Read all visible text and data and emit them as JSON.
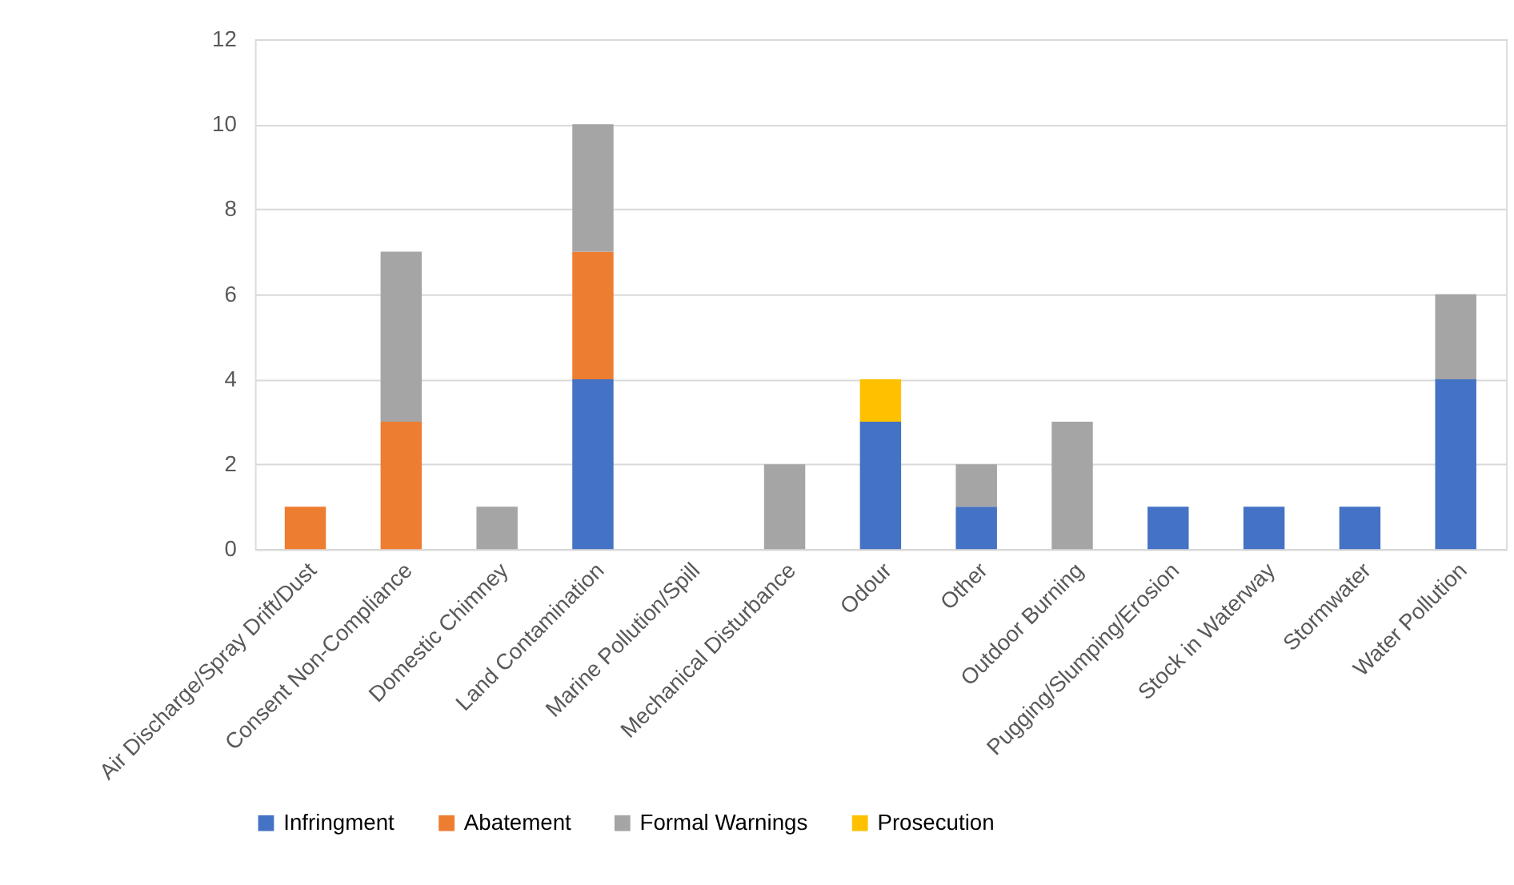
{
  "chart_data": {
    "type": "bar",
    "stacked": true,
    "categories": [
      "Air Discharge/Spray Drift/Dust",
      "Consent Non-Compliance",
      "Domestic Chimney",
      "Land Contamination",
      "Marine Pollution/Spill",
      "Mechanical Disturbance",
      "Odour",
      "Other",
      "Outdoor Burning",
      "Pugging/Slumping/Erosion",
      "Stock in Waterway",
      "Stormwater",
      "Water Pollution"
    ],
    "series": [
      {
        "name": "Infringment",
        "color": "#4472c4",
        "values": [
          null,
          null,
          null,
          4,
          null,
          null,
          3,
          1,
          null,
          1,
          1,
          1,
          4
        ]
      },
      {
        "name": "Abatement",
        "color": "#ed7d31",
        "values": [
          1,
          3,
          null,
          3,
          null,
          null,
          null,
          null,
          null,
          null,
          null,
          null,
          null
        ]
      },
      {
        "name": "Formal Warnings",
        "color": "#a5a5a5",
        "values": [
          null,
          4,
          1,
          3,
          null,
          2,
          null,
          1,
          3,
          null,
          null,
          null,
          2
        ]
      },
      {
        "name": "Prosecution",
        "color": "#ffc000",
        "values": [
          null,
          null,
          null,
          null,
          null,
          null,
          1,
          null,
          null,
          null,
          null,
          null,
          null
        ]
      }
    ],
    "ylim": [
      0,
      12
    ],
    "yticks": [
      0,
      2,
      4,
      6,
      8,
      10,
      12
    ],
    "grid": "y",
    "legend": "bottom"
  }
}
